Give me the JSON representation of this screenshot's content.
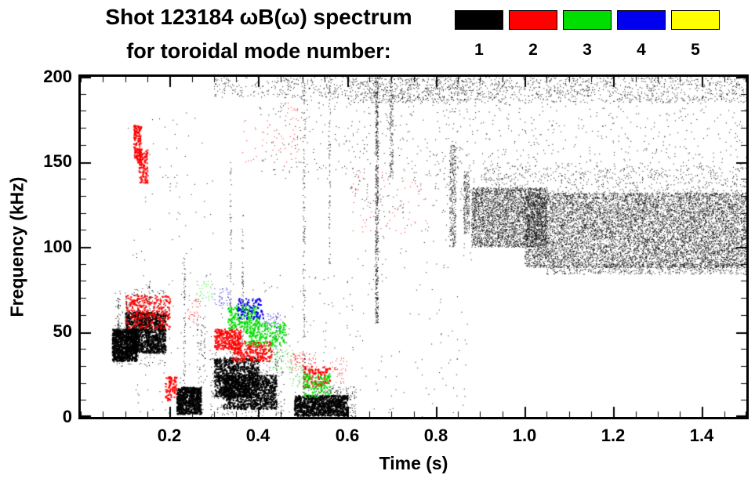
{
  "header": {
    "title_line1": "Shot 123184 ωB(ω) spectrum",
    "title_line2": "for toroidal mode number:"
  },
  "legend": {
    "items": [
      {
        "label": "1",
        "color": "#000000"
      },
      {
        "label": "2",
        "color": "#ff0000"
      },
      {
        "label": "3",
        "color": "#00dd00"
      },
      {
        "label": "4",
        "color": "#0000ee"
      },
      {
        "label": "5",
        "color": "#ffff00"
      }
    ]
  },
  "chart_data": {
    "type": "scatter",
    "title": "Shot 123184 ωB(ω) spectrum for toroidal mode number 1-5",
    "xlabel": "Time (s)",
    "ylabel": "Frequency (kHz)",
    "xlim": [
      0.0,
      1.5
    ],
    "ylim": [
      0,
      200
    ],
    "xticks": [
      0.2,
      0.4,
      0.6,
      0.8,
      1.0,
      1.2,
      1.4
    ],
    "xtick_labels": [
      "0.2",
      "0.4",
      "0.6",
      "0.8",
      "1.0",
      "1.2",
      "1.4"
    ],
    "yticks": [
      0,
      50,
      100,
      150,
      200
    ],
    "ytick_labels": [
      "0",
      "50",
      "100",
      "150",
      "200"
    ],
    "x_minor_step": 0.05,
    "y_minor_step": 10,
    "grid": false,
    "legend_position": "top",
    "series": [
      {
        "name": "1",
        "mode_number": 1,
        "color": "#000000",
        "clusters": [
          {
            "t": [
              0.07,
              0.125
            ],
            "f": [
              33,
              52
            ],
            "n": 900,
            "s": 2
          },
          {
            "t": [
              0.1,
              0.19
            ],
            "f": [
              38,
              62
            ],
            "n": 1100,
            "s": 2
          },
          {
            "t": [
              0.075,
              0.19
            ],
            "f": [
              30,
              75
            ],
            "n": 250,
            "s": 1
          },
          {
            "t": [
              0.082,
              0.086
            ],
            "f": [
              35,
              70
            ],
            "n": 60,
            "s": 1
          },
          {
            "t": [
              0.1,
              0.104
            ],
            "f": [
              38,
              72
            ],
            "n": 60,
            "s": 1
          },
          {
            "t": [
              0.125,
              0.129
            ],
            "f": [
              40,
              76
            ],
            "n": 60,
            "s": 1
          },
          {
            "t": [
              0.152,
              0.156
            ],
            "f": [
              45,
              80
            ],
            "n": 50,
            "s": 1
          },
          {
            "t": [
              0.215,
              0.27
            ],
            "f": [
              2,
              18
            ],
            "n": 700,
            "s": 2
          },
          {
            "t": [
              0.231,
              0.235
            ],
            "f": [
              5,
              95
            ],
            "n": 70,
            "s": 1
          },
          {
            "t": [
              0.26,
              0.28
            ],
            "f": [
              20,
              60
            ],
            "n": 60,
            "s": 1
          },
          {
            "t": [
              0.3,
              0.4
            ],
            "f": [
              12,
              35
            ],
            "n": 900,
            "s": 2
          },
          {
            "t": [
              0.32,
              0.44
            ],
            "f": [
              5,
              25
            ],
            "n": 900,
            "s": 2
          },
          {
            "t": [
              0.29,
              0.46
            ],
            "f": [
              0,
              40
            ],
            "n": 300,
            "s": 1
          },
          {
            "t": [
              0.335,
              0.339
            ],
            "f": [
              10,
              150
            ],
            "n": 90,
            "s": 1
          },
          {
            "t": [
              0.362,
              0.366
            ],
            "f": [
              40,
              120
            ],
            "n": 50,
            "s": 1
          },
          {
            "t": [
              0.438,
              0.442
            ],
            "f": [
              0,
              60
            ],
            "n": 40,
            "s": 1
          },
          {
            "t": [
              0.48,
              0.6
            ],
            "f": [
              1,
              13
            ],
            "n": 900,
            "s": 2
          },
          {
            "t": [
              0.5,
              0.62
            ],
            "f": [
              0,
              18
            ],
            "n": 300,
            "s": 1
          },
          {
            "t": [
              0.5,
              0.505
            ],
            "f": [
              0,
              200
            ],
            "n": 170,
            "s": 1
          },
          {
            "t": [
              0.558,
              0.562
            ],
            "f": [
              90,
              200
            ],
            "n": 80,
            "s": 1
          },
          {
            "t": [
              0.663,
              0.67
            ],
            "f": [
              55,
              200
            ],
            "n": 500,
            "s": 1
          },
          {
            "t": [
              0.695,
              0.703
            ],
            "f": [
              140,
              200
            ],
            "n": 130,
            "s": 1
          },
          {
            "t": [
              0.3,
              0.6
            ],
            "f": [
              188,
              200
            ],
            "n": 260,
            "s": 1
          },
          {
            "t": [
              0.6,
              0.9
            ],
            "f": [
              185,
              200
            ],
            "n": 700,
            "s": 1
          },
          {
            "t": [
              0.9,
              1.5
            ],
            "f": [
              185,
              200
            ],
            "n": 900,
            "s": 1
          },
          {
            "t": [
              0.6,
              0.95
            ],
            "f": [
              120,
              185
            ],
            "n": 380,
            "s": 1
          },
          {
            "t": [
              0.95,
              1.5
            ],
            "f": [
              148,
              185
            ],
            "n": 300,
            "s": 1
          },
          {
            "t": [
              0.83,
              0.845
            ],
            "f": [
              100,
              160
            ],
            "n": 280,
            "s": 1
          },
          {
            "t": [
              0.862,
              0.875
            ],
            "f": [
              108,
              145
            ],
            "n": 200,
            "s": 1
          },
          {
            "t": [
              0.88,
              1.05
            ],
            "f": [
              100,
              135
            ],
            "n": 3000,
            "s": 1
          },
          {
            "t": [
              1.0,
              1.5
            ],
            "f": [
              88,
              132
            ],
            "n": 9000,
            "s": 1
          },
          {
            "t": [
              0.9,
              1.5
            ],
            "f": [
              130,
              148
            ],
            "n": 700,
            "s": 1
          },
          {
            "t": [
              1.05,
              1.5
            ],
            "f": [
              84,
              90
            ],
            "n": 500,
            "s": 1
          },
          {
            "t": [
              0.12,
              0.62
            ],
            "f": [
              0,
              85
            ],
            "n": 250,
            "s": 1
          },
          {
            "t": [
              0.62,
              0.88
            ],
            "f": [
              0,
              120
            ],
            "n": 120,
            "s": 1
          },
          {
            "t": [
              0.1,
              0.3
            ],
            "f": [
              90,
              180
            ],
            "n": 60,
            "s": 1
          },
          {
            "t": [
              0.4,
              0.6
            ],
            "f": [
              140,
              188
            ],
            "n": 120,
            "s": 1
          }
        ]
      },
      {
        "name": "2",
        "mode_number": 2,
        "color": "#ff0000",
        "clusters": [
          {
            "t": [
              0.118,
              0.135
            ],
            "f": [
              150,
              172
            ],
            "n": 150,
            "s": 2
          },
          {
            "t": [
              0.13,
              0.15
            ],
            "f": [
              138,
              158
            ],
            "n": 120,
            "s": 2
          },
          {
            "t": [
              0.1,
              0.2
            ],
            "f": [
              52,
              72
            ],
            "n": 300,
            "s": 2
          },
          {
            "t": [
              0.19,
              0.215
            ],
            "f": [
              10,
              24
            ],
            "n": 90,
            "s": 2
          },
          {
            "t": [
              0.24,
              0.27
            ],
            "f": [
              55,
              70
            ],
            "n": 40,
            "s": 1
          },
          {
            "t": [
              0.3,
              0.36
            ],
            "f": [
              40,
              52
            ],
            "n": 260,
            "s": 2
          },
          {
            "t": [
              0.34,
              0.43
            ],
            "f": [
              33,
              45
            ],
            "n": 260,
            "s": 2
          },
          {
            "t": [
              0.36,
              0.44
            ],
            "f": [
              150,
              175
            ],
            "n": 30,
            "s": 1
          },
          {
            "t": [
              0.47,
              0.53
            ],
            "f": [
              26,
              38
            ],
            "n": 90,
            "s": 1
          },
          {
            "t": [
              0.5,
              0.56
            ],
            "f": [
              18,
              30
            ],
            "n": 120,
            "s": 2
          },
          {
            "t": [
              0.56,
              0.6
            ],
            "f": [
              20,
              35
            ],
            "n": 40,
            "s": 1
          },
          {
            "t": [
              0.44,
              0.5
            ],
            "f": [
              150,
              185
            ],
            "n": 40,
            "s": 1
          },
          {
            "t": [
              0.6,
              0.78
            ],
            "f": [
              108,
              145
            ],
            "n": 70,
            "s": 1
          }
        ]
      },
      {
        "name": "3",
        "mode_number": 3,
        "color": "#00dd00",
        "clusters": [
          {
            "t": [
              0.26,
              0.3
            ],
            "f": [
              68,
              80
            ],
            "n": 40,
            "s": 1
          },
          {
            "t": [
              0.33,
              0.4
            ],
            "f": [
              52,
              66
            ],
            "n": 200,
            "s": 2
          },
          {
            "t": [
              0.37,
              0.46
            ],
            "f": [
              42,
              56
            ],
            "n": 200,
            "s": 2
          },
          {
            "t": [
              0.42,
              0.48
            ],
            "f": [
              28,
              40
            ],
            "n": 60,
            "s": 1
          },
          {
            "t": [
              0.47,
              0.52
            ],
            "f": [
              18,
              30
            ],
            "n": 50,
            "s": 1
          },
          {
            "t": [
              0.5,
              0.56
            ],
            "f": [
              12,
              26
            ],
            "n": 110,
            "s": 2
          }
        ]
      },
      {
        "name": "4",
        "mode_number": 4,
        "color": "#0000ee",
        "clusters": [
          {
            "t": [
              0.3,
              0.34
            ],
            "f": [
              64,
              76
            ],
            "n": 40,
            "s": 1
          },
          {
            "t": [
              0.35,
              0.41
            ],
            "f": [
              58,
              70
            ],
            "n": 100,
            "s": 2
          },
          {
            "t": [
              0.41,
              0.45
            ],
            "f": [
              52,
              62
            ],
            "n": 40,
            "s": 1
          }
        ]
      },
      {
        "name": "5",
        "mode_number": 5,
        "color": "#ffff00",
        "clusters": []
      }
    ]
  }
}
